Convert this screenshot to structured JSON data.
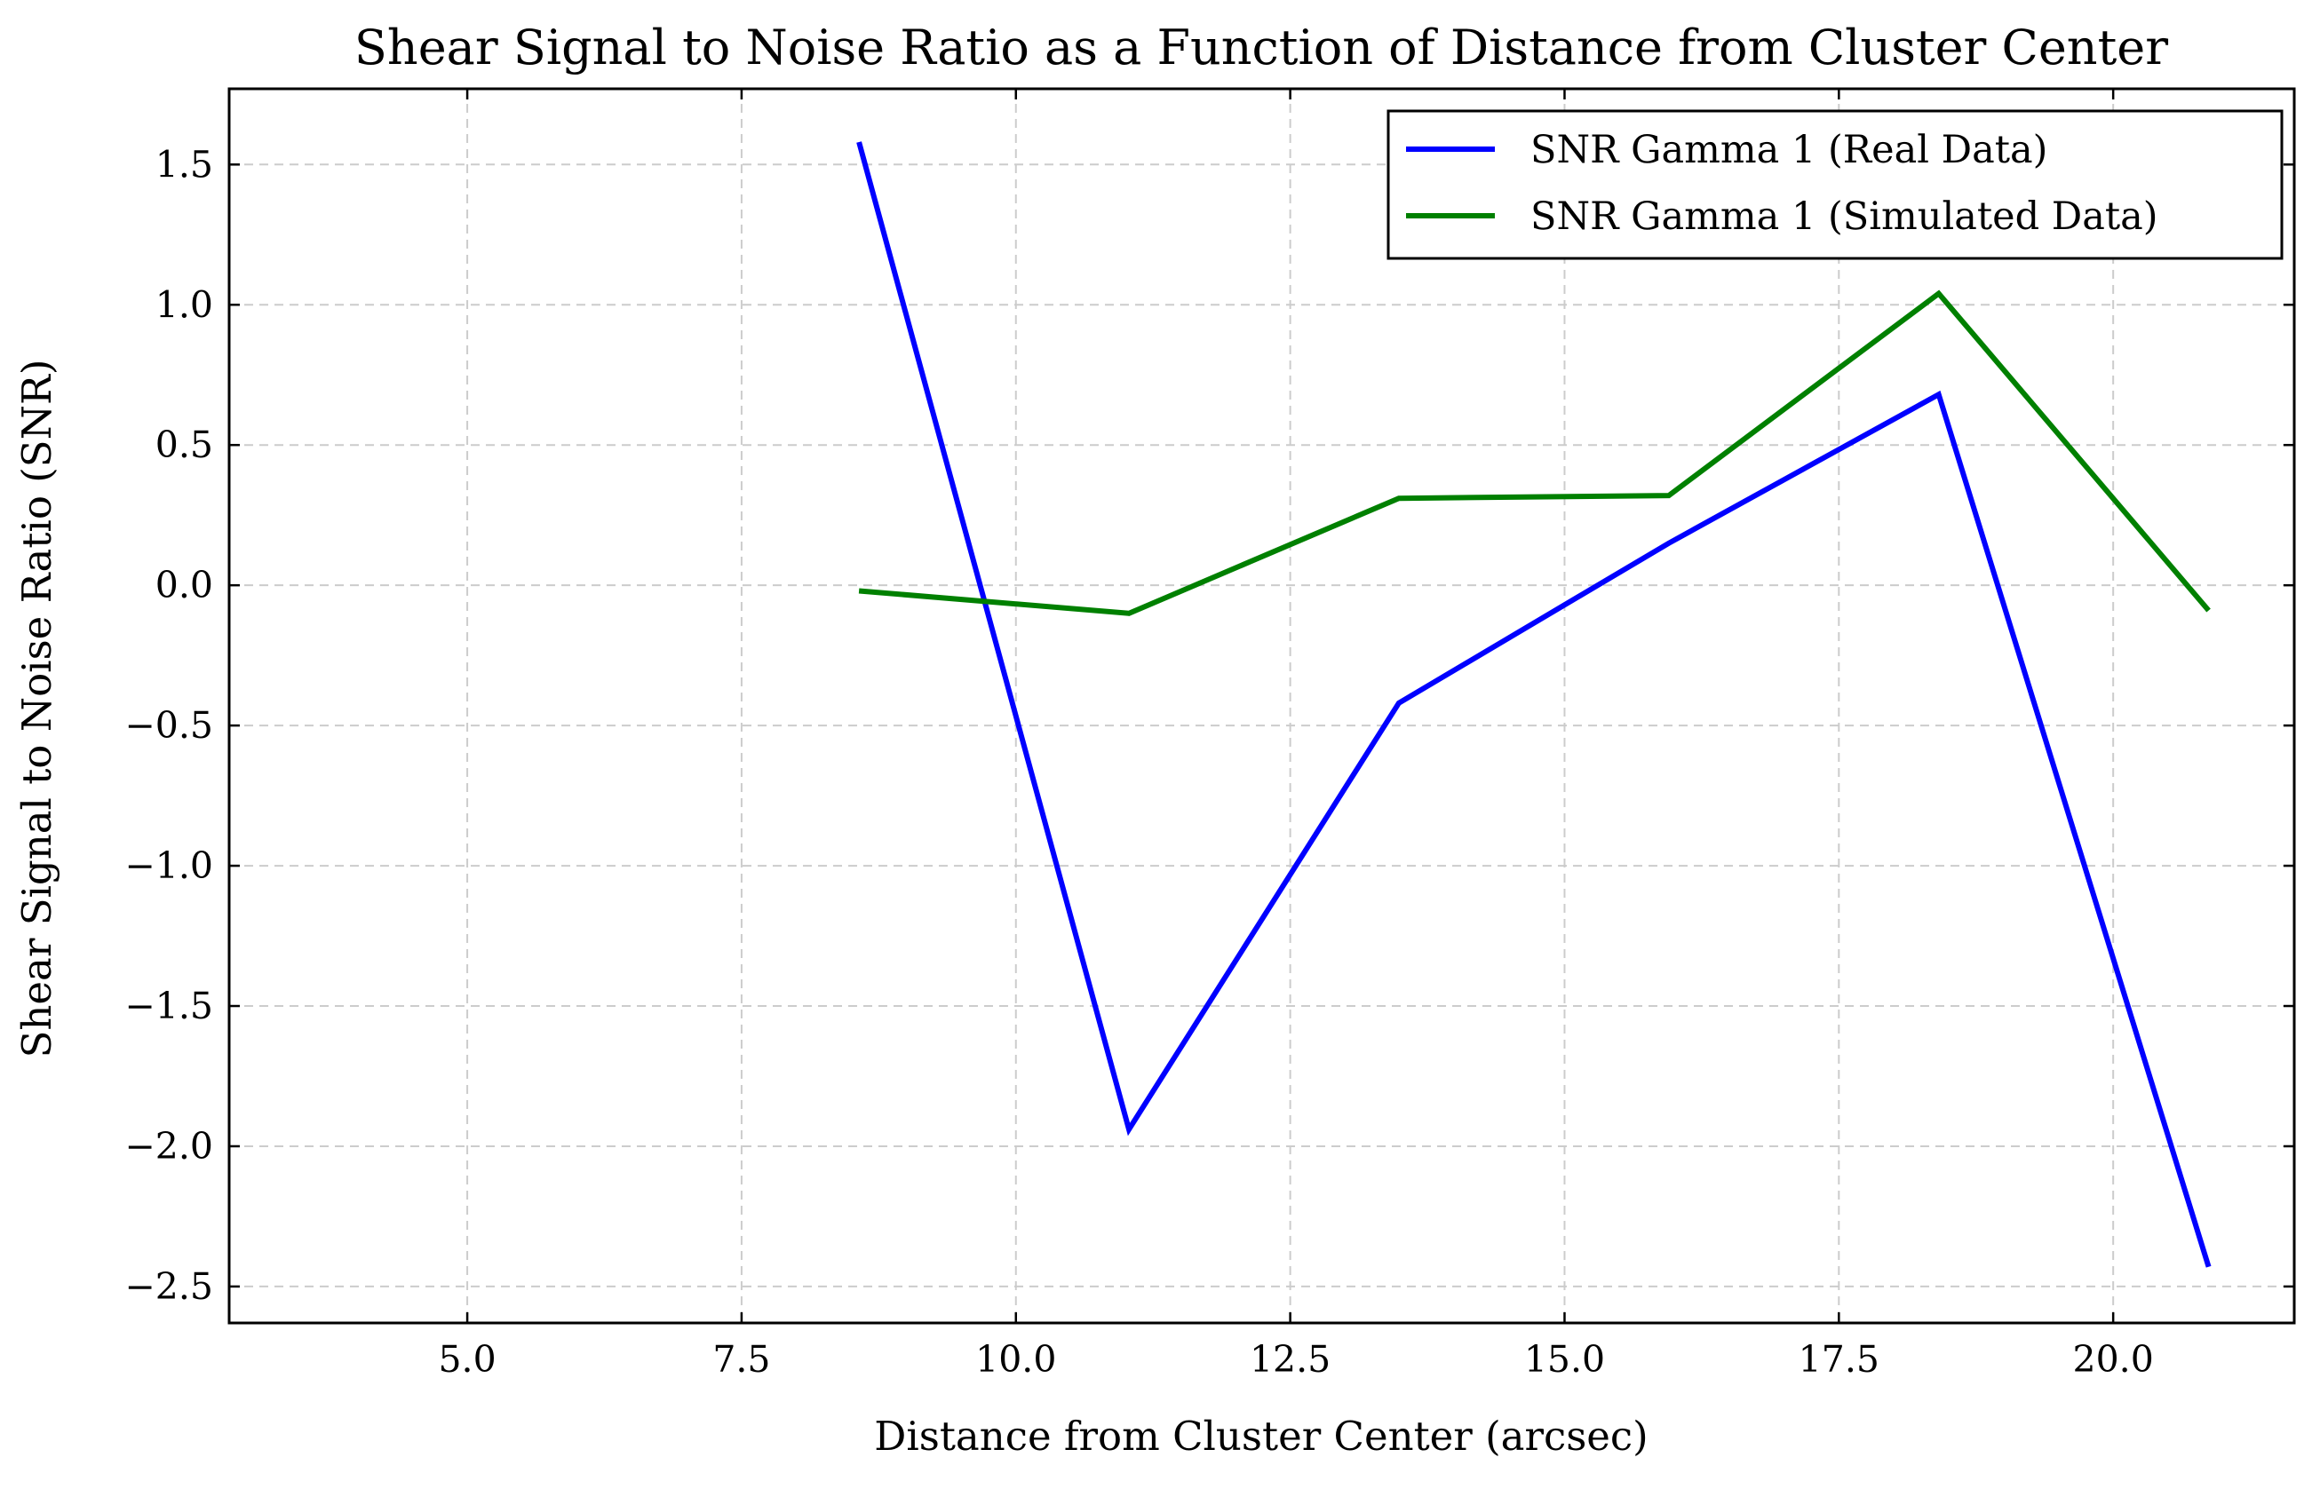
{
  "chart_data": {
    "type": "line",
    "title": "Shear Signal to Noise Ratio as a Function of Distance from Cluster Center",
    "xlabel": "Distance from Cluster Center (arcsec)",
    "ylabel": "Shear Signal to Noise Ratio (SNR)",
    "xlim": [
      2.83,
      21.65
    ],
    "ylim": [
      -2.63,
      1.77
    ],
    "xticks": [
      5.0,
      7.5,
      10.0,
      12.5,
      15.0,
      17.5,
      20.0
    ],
    "xtick_labels": [
      "5.0",
      "7.5",
      "10.0",
      "12.5",
      "15.0",
      "17.5",
      "20.0"
    ],
    "yticks": [
      1.5,
      1.0,
      0.5,
      0.0,
      -0.5,
      -1.0,
      -1.5,
      -2.0,
      -2.5
    ],
    "ytick_labels": [
      "1.5",
      "1.0",
      "0.5",
      "0.0",
      "−0.5",
      "−1.0",
      "−1.5",
      "−2.0",
      "−2.5"
    ],
    "grid": true,
    "legend_position": "top-right",
    "series": [
      {
        "name": "SNR Gamma 1 (Real Data)",
        "color": "#0000ff",
        "x": [
          8.57,
          11.03,
          13.49,
          15.95,
          18.41,
          20.87
        ],
        "y": [
          1.58,
          -1.94,
          -0.42,
          0.15,
          0.68,
          -2.43
        ]
      },
      {
        "name": "SNR Gamma 1 (Simulated Data)",
        "color": "#008000",
        "x": [
          8.57,
          11.03,
          13.49,
          15.95,
          18.41,
          20.87
        ],
        "y": [
          -0.02,
          -0.1,
          0.31,
          0.32,
          1.04,
          -0.09
        ]
      }
    ]
  }
}
